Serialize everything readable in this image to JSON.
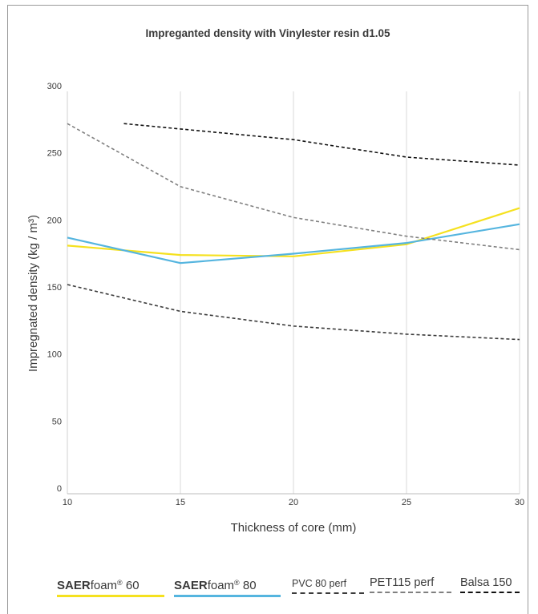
{
  "chart_data": {
    "type": "line",
    "title": "Impreganted density with Vinylester resin d1.05",
    "xlabel": "Thickness of core (mm)",
    "ylabel": "Impregnated density (kg / m³)",
    "xlim": [
      10,
      30
    ],
    "ylim": [
      0,
      300
    ],
    "x_ticks": [
      "10",
      "15",
      "20",
      "25",
      "30"
    ],
    "y_ticks": [
      "0",
      "50",
      "100",
      "150",
      "200",
      "250",
      "300"
    ],
    "grid": "vertical",
    "legend_placement": "bottom",
    "series": [
      {
        "name": "SAERfoam® 60",
        "color": "#f5e11f",
        "dash": "solid",
        "width": 2.2,
        "points": [
          [
            10,
            185
          ],
          [
            15,
            178
          ],
          [
            20,
            177
          ],
          [
            25,
            186
          ],
          [
            30,
            213
          ]
        ]
      },
      {
        "name": "SAERfoam® 80",
        "color": "#55b5df",
        "dash": "solid",
        "width": 2.2,
        "points": [
          [
            10,
            191
          ],
          [
            15,
            172
          ],
          [
            20,
            179
          ],
          [
            25,
            187
          ],
          [
            30,
            201
          ]
        ]
      },
      {
        "name": "PVC 80 perf",
        "color": "#3b3b3b",
        "dash": "dashed",
        "width": 1.6,
        "points": [
          [
            10,
            156
          ],
          [
            15,
            136
          ],
          [
            20,
            125
          ],
          [
            25,
            119
          ],
          [
            30,
            115
          ]
        ]
      },
      {
        "name": "PET115 perf",
        "color": "#808080",
        "dash": "dashed",
        "width": 1.6,
        "points": [
          [
            10,
            276
          ],
          [
            15,
            229
          ],
          [
            20,
            206
          ],
          [
            25,
            192
          ],
          [
            30,
            182
          ]
        ]
      },
      {
        "name": "Balsa 150",
        "color": "#111111",
        "dash": "dashed",
        "width": 1.6,
        "points": [
          [
            12.5,
            276
          ],
          [
            15,
            272
          ],
          [
            20,
            264
          ],
          [
            25,
            251
          ],
          [
            30,
            245
          ]
        ]
      }
    ]
  },
  "legend": [
    {
      "bold": "SAER",
      "text": "foam",
      "sup": "®",
      "rest": " 60"
    },
    {
      "bold": "SAER",
      "text": "foam",
      "sup": "®",
      "rest": " 80"
    },
    {
      "bold": "",
      "text": "PVC 80 perf",
      "sup": "",
      "rest": ""
    },
    {
      "bold": "",
      "text": "PET115 perf",
      "sup": "",
      "rest": ""
    },
    {
      "bold": "",
      "text": "Balsa 150",
      "sup": "",
      "rest": ""
    }
  ]
}
